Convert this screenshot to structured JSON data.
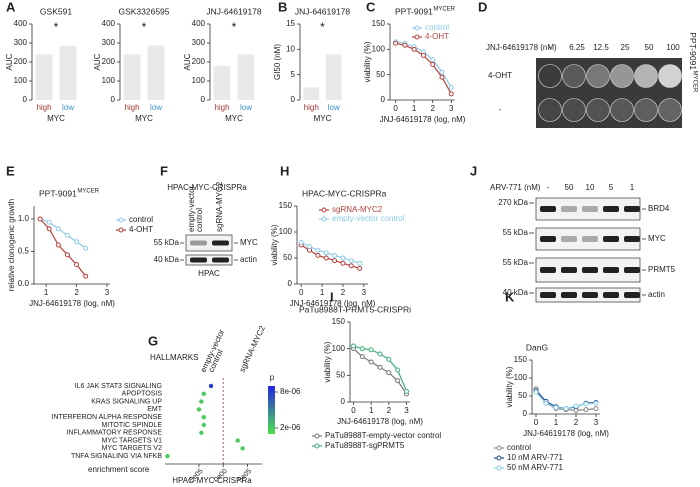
{
  "panel_letters": [
    "A",
    "B",
    "C",
    "D",
    "E",
    "F",
    "G",
    "H",
    "I",
    "J",
    "K"
  ],
  "chart_data": [
    {
      "type": "bar",
      "title": "GSK591",
      "categories": [
        "high",
        "low"
      ],
      "category_colors": [
        "#a33a35",
        "#3f8fd2"
      ],
      "values": [
        240,
        285
      ],
      "color": "#e9e9e9",
      "ylabel": "AUC",
      "xlabel": "MYC",
      "ylim": [
        0,
        400
      ],
      "yticks": [
        0,
        100,
        200,
        300,
        400
      ],
      "annotation": "*"
    },
    {
      "type": "bar",
      "title": "GSK3326595",
      "categories": [
        "high",
        "low"
      ],
      "category_colors": [
        "#a33a35",
        "#3f8fd2"
      ],
      "values": [
        240,
        287
      ],
      "color": "#e9e9e9",
      "ylabel": "AUC",
      "xlabel": "MYC",
      "ylim": [
        0,
        400
      ],
      "yticks": [
        0,
        100,
        200,
        300,
        400
      ],
      "annotation": "*"
    },
    {
      "type": "bar",
      "title": "JNJ-64619178",
      "categories": [
        "high",
        "low"
      ],
      "category_colors": [
        "#a33a35",
        "#3f8fd2"
      ],
      "values": [
        180,
        240
      ],
      "color": "#e9e9e9",
      "ylabel": "AUC",
      "xlabel": "MYC",
      "ylim": [
        0,
        400
      ],
      "yticks": [
        0,
        100,
        200,
        300,
        400
      ],
      "annotation": "*"
    },
    {
      "type": "bar",
      "title": "JNJ-64619178",
      "categories": [
        "high",
        "low"
      ],
      "category_colors": [
        "#a33a35",
        "#3f8fd2"
      ],
      "values": [
        2.5,
        9
      ],
      "color": "#e9e9e9",
      "ylabel": "GI50 (nM)",
      "xlabel": "MYC",
      "ylim": [
        0,
        15
      ],
      "yticks": [
        0,
        5,
        10,
        15
      ],
      "annotation": "*"
    },
    {
      "type": "line",
      "title": "PPT-9091",
      "title_sup": "MYCER",
      "x": [
        0,
        0.5,
        1,
        1.5,
        2,
        2.5,
        3
      ],
      "series": [
        {
          "name": "control",
          "color": "#8ccbea",
          "values": [
            115,
            112,
            105,
            95,
            80,
            55,
            25
          ]
        },
        {
          "name": "4-OHT",
          "color": "#b8403a",
          "values": [
            112,
            108,
            100,
            88,
            70,
            45,
            12
          ]
        }
      ],
      "xlim": [
        -0.3,
        3.2
      ],
      "xticks": [
        0,
        1,
        2,
        3
      ],
      "ylim": [
        0,
        150
      ],
      "yticks": [
        0,
        50,
        100,
        150
      ],
      "xlabel": "JNJ-64619178 (log, nM)",
      "ylabel": "viability (%)",
      "legend": "inside"
    },
    {
      "type": "line",
      "title": "PPT-9091",
      "title_sup": "MYCER",
      "x": [
        0.8,
        1.1,
        1.4,
        1.7,
        2,
        2.3
      ],
      "series": [
        {
          "name": "control",
          "color": "#8ccbea",
          "values": [
            1.0,
            0.95,
            0.85,
            0.75,
            0.65,
            0.55
          ]
        },
        {
          "name": "4-OHT",
          "color": "#b8403a",
          "values": [
            1.0,
            0.85,
            0.6,
            0.45,
            0.3,
            0.12
          ]
        }
      ],
      "xlim": [
        0.6,
        3.1
      ],
      "xticks": [
        1,
        2,
        3
      ],
      "ylim": [
        0,
        1.2
      ],
      "yticks": [
        {
          "value": 0,
          "label": "0.0"
        },
        {
          "value": 0.5,
          "label": "0.5"
        },
        {
          "value": 1,
          "label": "1.0"
        }
      ],
      "xlabel": "JNJ-64619178 (log, nM)",
      "ylabel": "relative clonogenic growth",
      "legend": "right"
    },
    {
      "type": "line",
      "title": "HPAC-MYC-CRISPRa",
      "x": [
        0,
        0.4,
        0.8,
        1.2,
        1.6,
        2,
        2.4,
        2.8
      ],
      "series": [
        {
          "name": "sgRNA-MYC2",
          "color": "#b8403a",
          "values": [
            75,
            65,
            55,
            50,
            45,
            40,
            35,
            30
          ]
        },
        {
          "name": "empty-vector control",
          "color": "#8ccbea",
          "values": [
            80,
            72,
            65,
            60,
            55,
            50,
            45,
            40
          ]
        }
      ],
      "xlim": [
        -0.2,
        3.2
      ],
      "xticks": [
        0,
        1,
        2,
        3
      ],
      "ylim": [
        0,
        150
      ],
      "yticks": [
        0,
        50,
        100,
        150
      ],
      "xlabel": "JNJ-64619178 (log, nM)",
      "ylabel": "viability (%)",
      "legend": "inside"
    },
    {
      "type": "line",
      "title": "PaTu8988T-PRMT5-CRISPRi",
      "x": [
        0,
        0.5,
        1,
        1.5,
        2,
        2.5,
        3
      ],
      "series": [
        {
          "name": "PaTu8988T-empty-vector control",
          "color": "#777777",
          "values": [
            100,
            85,
            75,
            65,
            55,
            40,
            15
          ]
        },
        {
          "name": "PaTu8988T-sgPRMT5",
          "color": "#3fae7a",
          "values": [
            105,
            100,
            98,
            90,
            80,
            60,
            20
          ]
        }
      ],
      "xlim": [
        -0.2,
        3.2
      ],
      "xticks": [
        0,
        1,
        2,
        3
      ],
      "ylim": [
        0,
        150
      ],
      "yticks": [
        0,
        50,
        100,
        150
      ],
      "xlabel": "JNJ-64619178 (log, nM)",
      "ylabel": "viability (%)",
      "legend": "below"
    },
    {
      "type": "line",
      "title": "DanG",
      "x": [
        0,
        0.5,
        1,
        1.5,
        2,
        2.5,
        3
      ],
      "series": [
        {
          "name": "control",
          "color": "#888888",
          "values": [
            70,
            30,
            15,
            12,
            10,
            12,
            15
          ]
        },
        {
          "name": "10 nM ARV-771",
          "color": "#1f4f8a",
          "values": [
            65,
            35,
            20,
            15,
            20,
            30,
            32
          ]
        },
        {
          "name": "50 nM ARV-771",
          "color": "#8ccbea",
          "values": [
            60,
            30,
            18,
            15,
            22,
            28,
            30
          ]
        }
      ],
      "xlim": [
        -0.2,
        3.2
      ],
      "xticks": [
        0,
        1,
        2,
        3
      ],
      "ylim": [
        0,
        150
      ],
      "yticks": [
        0,
        50,
        100,
        150
      ],
      "xlabel": "JNJ-64619178 (log, nM)",
      "ylabel": "viability (%)",
      "legend": "below"
    }
  ],
  "plate": {
    "treatment_label": "JNJ-64619178 (nM)",
    "doses": [
      "-",
      "6.25",
      "12.5",
      "25",
      "50",
      "100"
    ],
    "rows": [
      "4-OHT",
      "-"
    ],
    "cell_line": "PPT-9091",
    "cell_line_sup": "MYCER"
  },
  "blot_f": {
    "title": "HPAC-MYC-CRISPRa",
    "lanes": [
      [
        "empty-vector",
        "control"
      ],
      [
        "sgRNA-MYC2"
      ]
    ],
    "markers": [
      "55 kDa",
      "40 kDa"
    ],
    "proteins": [
      "MYC",
      "actin"
    ],
    "cell": "HPAC"
  },
  "blot_j": {
    "treatment_label": "ARV-771 (nM)",
    "lanes": [
      "-",
      "50",
      "10",
      "5",
      "1"
    ],
    "markers": [
      "270 kDa",
      "55 kDa",
      "55 kDa",
      "40 kDa"
    ],
    "proteins": [
      "BRD4",
      "MYC",
      "PRMT5",
      "actin"
    ]
  },
  "gsea": {
    "title": "HALLMARKS",
    "columns": [
      [
        "empty-vector",
        "control"
      ],
      [
        "sgRNA-MYC2"
      ]
    ],
    "terms": [
      "IL6 JAK STAT3 SIGNALING",
      "APOPTOSIS",
      "KRAS SIGNALING UP",
      "EMT",
      "INTERFERON ALPHA RESPONSE",
      "MITOTIC SPINDLE",
      "INFLAMMATORY RESPONSE",
      "MYC TARGETS V1",
      "MYC TARGETS V2",
      "TNFA SIGNALING VIA NFKB"
    ],
    "values": [
      -250000,
      -400000,
      -450000,
      -500000,
      -400000,
      -400000,
      -450000,
      300000,
      400000,
      -1150000
    ],
    "p": [
      8e-06,
      2e-06,
      2e-06,
      2e-06,
      2e-06,
      2e-06,
      2e-06,
      2e-06,
      2e-06,
      2e-06
    ],
    "xlim": [
      -1200000,
      800000
    ],
    "xticks": [
      {
        "value": -500000,
        "label": "-5e05"
      },
      {
        "value": 0,
        "label": "0e00"
      },
      {
        "value": 500000,
        "label": "5e05"
      }
    ],
    "xlabel": "enrichment score",
    "subtitle": "HPAC-MYC-CRISPRa",
    "legend_title": "p",
    "colorbar_lim": [
      1e-06,
      9e-06
    ],
    "colorbar_ticks": [
      {
        "value": 8e-06,
        "label": "8e-06"
      },
      {
        "value": 2e-06,
        "label": "2e-06"
      }
    ]
  }
}
